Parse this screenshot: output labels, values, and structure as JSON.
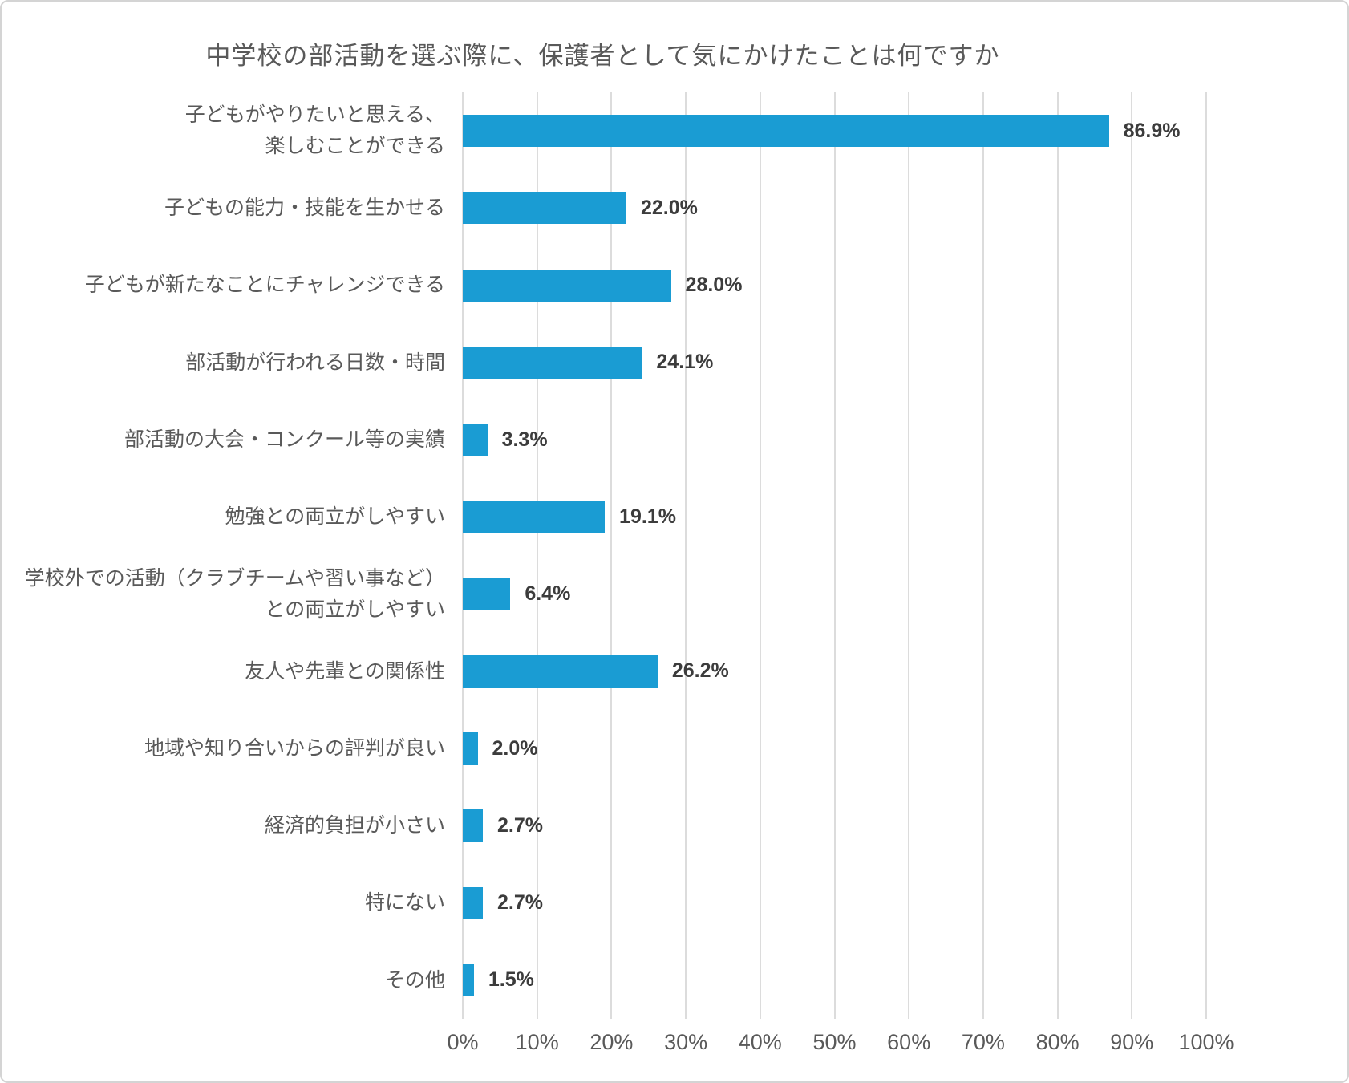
{
  "chart_data": {
    "type": "bar",
    "orientation": "horizontal",
    "title": "中学校の部活動を選ぶ際に、保護者として気にかけたことは何ですか",
    "categories": [
      {
        "lines": [
          "子どもがやりたいと思える、",
          "楽しむことができる"
        ]
      },
      {
        "lines": [
          "子どもの能力・技能を生かせる"
        ]
      },
      {
        "lines": [
          "子どもが新たなことにチャレンジできる"
        ]
      },
      {
        "lines": [
          "部活動が行われる日数・時間"
        ]
      },
      {
        "lines": [
          "部活動の大会・コンクール等の実績"
        ]
      },
      {
        "lines": [
          "勉強との両立がしやすい"
        ]
      },
      {
        "lines": [
          "学校外での活動（クラブチームや習い事など）",
          "との両立がしやすい"
        ]
      },
      {
        "lines": [
          "友人や先輩との関係性"
        ]
      },
      {
        "lines": [
          "地域や知り合いからの評判が良い"
        ]
      },
      {
        "lines": [
          "経済的負担が小さい"
        ]
      },
      {
        "lines": [
          "特にない"
        ]
      },
      {
        "lines": [
          "その他"
        ]
      }
    ],
    "values": [
      86.9,
      22.0,
      28.0,
      24.1,
      3.3,
      19.1,
      6.4,
      26.2,
      2.0,
      2.7,
      2.7,
      1.5
    ],
    "value_labels": [
      "86.9%",
      "22.0%",
      "28.0%",
      "24.1%",
      "3.3%",
      "19.1%",
      "6.4%",
      "26.2%",
      "2.0%",
      "2.7%",
      "2.7%",
      "1.5%"
    ],
    "xlabel": "",
    "ylabel": "",
    "xlim": [
      0,
      100
    ],
    "x_ticks": [
      "0%",
      "10%",
      "20%",
      "30%",
      "40%",
      "50%",
      "60%",
      "70%",
      "80%",
      "90%",
      "100%"
    ],
    "grid": "vertical",
    "legend": "none",
    "bar_color": "#1A9CD3",
    "gridline_color": "#dcdcdc",
    "text_color": "#595959",
    "value_text_color": "#3c3c3c"
  }
}
